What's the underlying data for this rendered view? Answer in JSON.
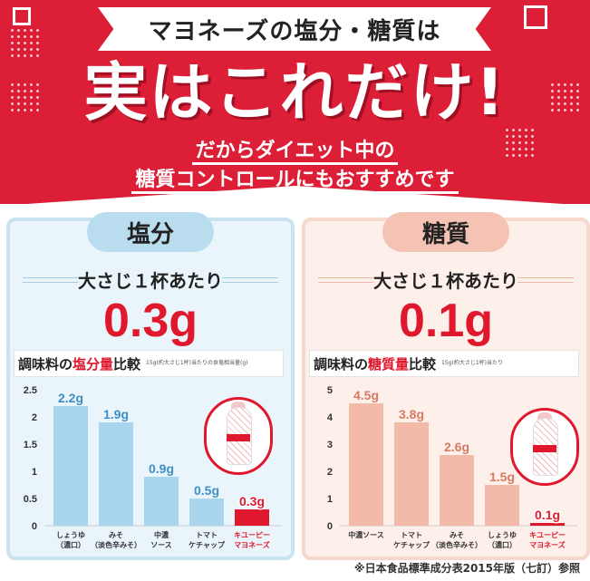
{
  "header": {
    "band_text": "マヨネーズの塩分・糖質は",
    "headline": "実はこれだけ!",
    "sub_line1": "だからダイエット中の",
    "sub_line2": "糖質コントロールにもおすすめです",
    "bg_color": "#dc1f37"
  },
  "panels": [
    {
      "tag": "塩分",
      "per_spoon": "大さじ１杯あたり",
      "amount": "0.3g",
      "cmp_prefix": "調味料の",
      "cmp_highlight": "塩分量",
      "cmp_suffix": "比較",
      "cmp_note": "15g(約大さじ1杯)当たりの食塩相当量(g)"
    },
    {
      "tag": "糖質",
      "per_spoon": "大さじ１杯あたり",
      "amount": "0.1g",
      "cmp_prefix": "調味料の",
      "cmp_highlight": "糖質量",
      "cmp_suffix": "比較",
      "cmp_note": "15g(約大さじ1杯)当たり"
    }
  ],
  "footnote": "※日本食品標準成分表2015年版（七訂）参照",
  "chart_data": [
    {
      "type": "bar",
      "categories": [
        [
          "しょうゆ",
          "（濃口）"
        ],
        [
          "みそ",
          "（淡色辛みそ）"
        ],
        [
          "中濃",
          "ソース"
        ],
        [
          "トマト",
          "ケチャップ"
        ],
        [
          "キユーピー",
          "マヨネーズ"
        ]
      ],
      "values": [
        2.2,
        1.9,
        0.9,
        0.5,
        0.3
      ],
      "value_labels": [
        "2.2g",
        "1.9g",
        "0.9g",
        "0.5g",
        "0.3g"
      ],
      "yticks": [
        "0",
        "0.5",
        "1",
        "1.5",
        "2",
        "2.5"
      ],
      "ylim": [
        0,
        2.5
      ],
      "highlight_index": 4,
      "bar_color": "#a9d6ee",
      "highlight_color": "#e0182d",
      "label_color": "#3d8fc4"
    },
    {
      "type": "bar",
      "categories": [
        [
          "中濃ソース"
        ],
        [
          "トマト",
          "ケチャップ"
        ],
        [
          "みそ",
          "（淡色辛みそ）"
        ],
        [
          "しょうゆ",
          "（濃口）"
        ],
        [
          "キユーピー",
          "マヨネーズ"
        ]
      ],
      "values": [
        4.5,
        3.8,
        2.6,
        1.5,
        0.1
      ],
      "value_labels": [
        "4.5g",
        "3.8g",
        "2.6g",
        "1.5g",
        "0.1g"
      ],
      "yticks": [
        "0",
        "1",
        "2",
        "3",
        "4",
        "5"
      ],
      "ylim": [
        0,
        5
      ],
      "highlight_index": 4,
      "bar_color": "#f3b9a9",
      "highlight_color": "#e0182d",
      "label_color": "#d77a63"
    }
  ]
}
